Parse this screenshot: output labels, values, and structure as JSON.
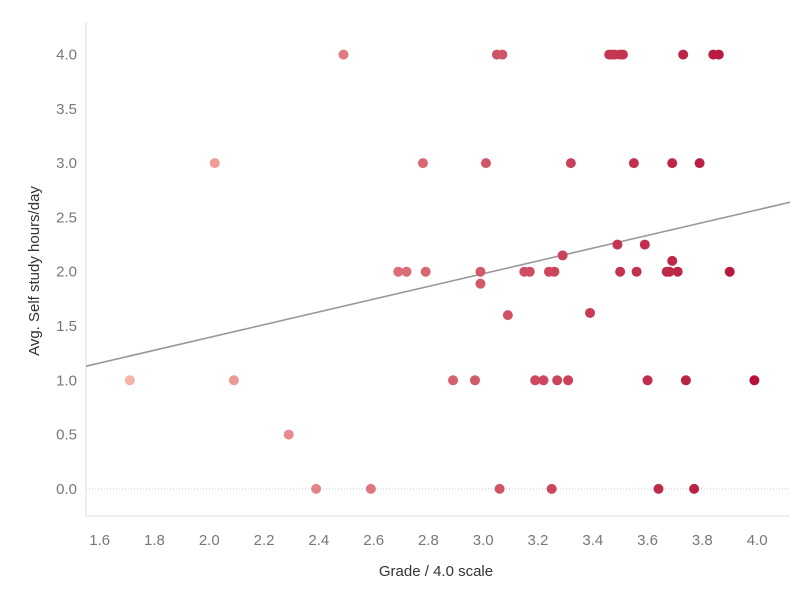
{
  "chart_data": {
    "type": "scatter",
    "title": "",
    "xlabel": "Grade / 4.0 scale",
    "ylabel": "Avg. Self study hours/day",
    "xlim": [
      1.55,
      4.12
    ],
    "ylim": [
      -0.25,
      4.3
    ],
    "x_ticks": [
      "1.6",
      "1.8",
      "2.0",
      "2.2",
      "2.4",
      "2.6",
      "2.8",
      "3.0",
      "3.2",
      "3.4",
      "3.6",
      "3.8",
      "4.0"
    ],
    "y_ticks": [
      "0.0",
      "0.5",
      "1.0",
      "1.5",
      "2.0",
      "2.5",
      "3.0",
      "3.5",
      "4.0"
    ],
    "grid": false,
    "zero_line": "dotted",
    "color_scale": {
      "low": "#f7b3a6",
      "high": "#b5123a"
    },
    "trend_line": {
      "color": "#999999",
      "points": [
        [
          1.55,
          1.13
        ],
        [
          4.12,
          2.64
        ]
      ]
    },
    "points": [
      {
        "x": 1.71,
        "y": 1.0
      },
      {
        "x": 2.02,
        "y": 3.0
      },
      {
        "x": 2.09,
        "y": 1.0
      },
      {
        "x": 2.29,
        "y": 0.5
      },
      {
        "x": 2.39,
        "y": 0.0
      },
      {
        "x": 2.49,
        "y": 4.0
      },
      {
        "x": 2.59,
        "y": 0.0
      },
      {
        "x": 2.69,
        "y": 2.0
      },
      {
        "x": 2.72,
        "y": 2.0
      },
      {
        "x": 2.78,
        "y": 3.0
      },
      {
        "x": 2.79,
        "y": 2.0
      },
      {
        "x": 2.89,
        "y": 1.0
      },
      {
        "x": 2.97,
        "y": 1.0
      },
      {
        "x": 2.99,
        "y": 2.0
      },
      {
        "x": 2.99,
        "y": 1.89
      },
      {
        "x": 3.01,
        "y": 3.0
      },
      {
        "x": 3.05,
        "y": 4.0
      },
      {
        "x": 3.06,
        "y": 0.0
      },
      {
        "x": 3.07,
        "y": 4.0
      },
      {
        "x": 3.09,
        "y": 1.6
      },
      {
        "x": 3.15,
        "y": 2.0
      },
      {
        "x": 3.17,
        "y": 2.0
      },
      {
        "x": 3.19,
        "y": 1.0
      },
      {
        "x": 3.22,
        "y": 1.0
      },
      {
        "x": 3.24,
        "y": 2.0
      },
      {
        "x": 3.25,
        "y": 0.0
      },
      {
        "x": 3.26,
        "y": 2.0
      },
      {
        "x": 3.27,
        "y": 1.0
      },
      {
        "x": 3.29,
        "y": 2.15
      },
      {
        "x": 3.31,
        "y": 1.0
      },
      {
        "x": 3.32,
        "y": 3.0
      },
      {
        "x": 3.39,
        "y": 1.62
      },
      {
        "x": 3.46,
        "y": 4.0
      },
      {
        "x": 3.47,
        "y": 4.0
      },
      {
        "x": 3.48,
        "y": 4.0
      },
      {
        "x": 3.49,
        "y": 2.25
      },
      {
        "x": 3.5,
        "y": 2.0
      },
      {
        "x": 3.5,
        "y": 4.0
      },
      {
        "x": 3.51,
        "y": 4.0
      },
      {
        "x": 3.55,
        "y": 3.0
      },
      {
        "x": 3.56,
        "y": 2.0
      },
      {
        "x": 3.59,
        "y": 2.25
      },
      {
        "x": 3.6,
        "y": 1.0
      },
      {
        "x": 3.64,
        "y": 0.0
      },
      {
        "x": 3.67,
        "y": 2.0
      },
      {
        "x": 3.68,
        "y": 2.0
      },
      {
        "x": 3.69,
        "y": 3.0
      },
      {
        "x": 3.69,
        "y": 2.1
      },
      {
        "x": 3.71,
        "y": 2.0
      },
      {
        "x": 3.73,
        "y": 4.0
      },
      {
        "x": 3.74,
        "y": 1.0
      },
      {
        "x": 3.77,
        "y": 0.0
      },
      {
        "x": 3.79,
        "y": 3.0
      },
      {
        "x": 3.84,
        "y": 4.0
      },
      {
        "x": 3.86,
        "y": 4.0
      },
      {
        "x": 3.9,
        "y": 2.0
      },
      {
        "x": 3.99,
        "y": 1.0
      }
    ]
  }
}
